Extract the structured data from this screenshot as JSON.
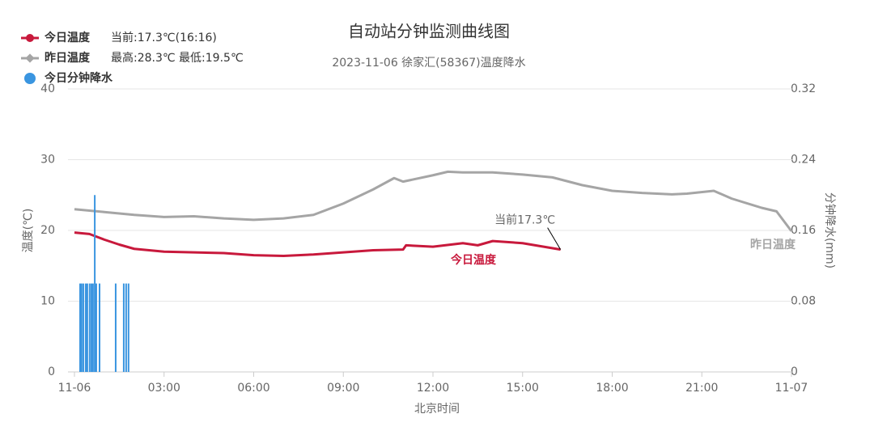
{
  "chart_data": {
    "type": "line",
    "title": "自动站分钟监测曲线图",
    "subtitle": "2023-11-06 徐家汇(58367)温度降水",
    "x_label": "北京时间",
    "y_label": "温度(℃)",
    "y2_label": "分钟降水(mm)",
    "xlim": [
      0,
      24
    ],
    "xticks": [
      {
        "value": 0,
        "label": "11-06"
      },
      {
        "value": 3,
        "label": "03:00"
      },
      {
        "value": 6,
        "label": "06:00"
      },
      {
        "value": 9,
        "label": "09:00"
      },
      {
        "value": 12,
        "label": "12:00"
      },
      {
        "value": 15,
        "label": "15:00"
      },
      {
        "value": 18,
        "label": "18:00"
      },
      {
        "value": 21,
        "label": "21:00"
      },
      {
        "value": 24,
        "label": "11-07"
      }
    ],
    "ylim": [
      0,
      40
    ],
    "yticks": [
      0,
      10,
      20,
      30,
      40
    ],
    "y2lim": [
      0,
      0.32
    ],
    "y2ticks": [
      0,
      0.08,
      0.16,
      0.24,
      0.32
    ],
    "grid": true,
    "series": [
      {
        "name": "今日温度",
        "legend_note": "当前:17.3℃(16:16)",
        "color": "#c8193c",
        "kind": "line",
        "x": [
          0,
          0.5,
          1,
          1.5,
          2,
          3,
          4,
          5,
          6,
          7,
          8,
          9,
          10,
          11,
          11.1,
          12,
          13,
          13.5,
          14,
          15,
          16.27
        ],
        "values": [
          19.7,
          19.5,
          18.7,
          18.0,
          17.4,
          17.0,
          16.9,
          16.8,
          16.5,
          16.4,
          16.6,
          16.9,
          17.2,
          17.3,
          17.9,
          17.7,
          18.2,
          17.9,
          18.5,
          18.2,
          17.3
        ]
      },
      {
        "name": "昨日温度",
        "legend_note": "最高:28.3℃ 最低:19.5℃",
        "color": "#a5a5a5",
        "kind": "line",
        "x": [
          0,
          1,
          2,
          3,
          4,
          5,
          6,
          7,
          8,
          9,
          10,
          10.7,
          11,
          12,
          12.5,
          13,
          14,
          15,
          16,
          17,
          18,
          19,
          20,
          20.5,
          21.4,
          22,
          23,
          23.5,
          24
        ],
        "values": [
          23.0,
          22.6,
          22.2,
          21.9,
          22.0,
          21.7,
          21.5,
          21.7,
          22.2,
          23.8,
          25.8,
          27.4,
          26.9,
          27.8,
          28.3,
          28.2,
          28.2,
          27.9,
          27.5,
          26.4,
          25.6,
          25.3,
          25.1,
          25.2,
          25.6,
          24.5,
          23.2,
          22.7,
          19.9
        ]
      },
      {
        "name": "今日分钟降水",
        "color": "#3a95e0",
        "kind": "bar",
        "axis": "y2",
        "x": [
          0.19,
          0.24,
          0.3,
          0.38,
          0.43,
          0.51,
          0.57,
          0.62,
          0.68,
          0.73,
          0.84,
          1.38,
          1.65,
          1.73,
          1.81
        ],
        "values": [
          0.1,
          0.1,
          0.1,
          0.1,
          0.1,
          0.1,
          0.1,
          0.1,
          0.2,
          0.1,
          0.1,
          0.1,
          0.1,
          0.1,
          0.1
        ]
      }
    ],
    "annotation": "当前17.3℃"
  }
}
